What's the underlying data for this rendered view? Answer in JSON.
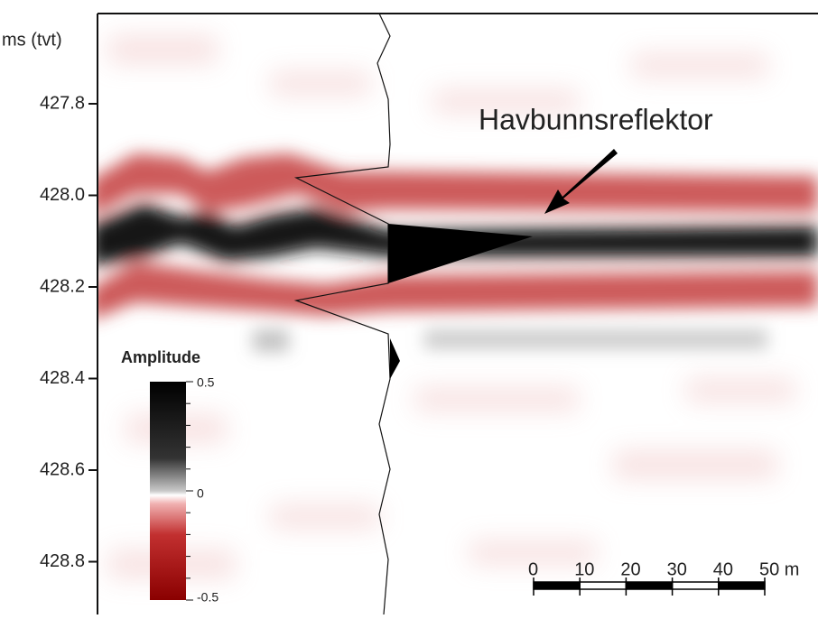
{
  "axis": {
    "label": "ms (tvt)",
    "ticks": [
      "427.8",
      "428.0",
      "428.2",
      "428.4",
      "428.6",
      "428.8"
    ]
  },
  "annotation": "Havbunnsreflektor",
  "colorbar": {
    "title": "Amplitude",
    "ticks": [
      "0.5",
      "0",
      "-0.5"
    ]
  },
  "scale_bar": {
    "labels": [
      "0",
      "10",
      "20",
      "30",
      "40",
      "50 m"
    ]
  }
}
